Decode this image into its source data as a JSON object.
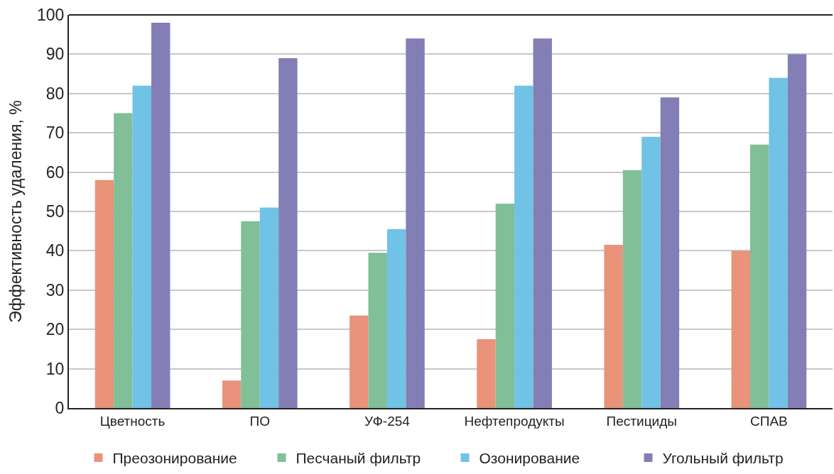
{
  "chart_data": {
    "type": "bar",
    "ylabel": "Эффективность удаления, %",
    "categories": [
      "Цветность",
      "ПО",
      "УФ-254",
      "Нефтепродукты",
      "Пестициды",
      "СПАВ"
    ],
    "series": [
      {
        "name": "Преозонирование",
        "color": "#e8937a",
        "values": [
          58,
          7,
          23.5,
          17.5,
          41.5,
          40
        ]
      },
      {
        "name": "Песчаный фильтр",
        "color": "#80bf98",
        "values": [
          75,
          47.5,
          39.5,
          52,
          60.5,
          67
        ]
      },
      {
        "name": "Озонирование",
        "color": "#70c2e6",
        "values": [
          82,
          51,
          45.5,
          82,
          69,
          84
        ]
      },
      {
        "name": "Угольный фильтр",
        "color": "#837eb5",
        "values": [
          98,
          89,
          94,
          94,
          79,
          90
        ]
      }
    ],
    "ylim": [
      0,
      100
    ],
    "yticks": [
      0,
      10,
      20,
      30,
      40,
      50,
      60,
      70,
      80,
      90,
      100
    ],
    "grid": "y",
    "legend": "bottom"
  }
}
